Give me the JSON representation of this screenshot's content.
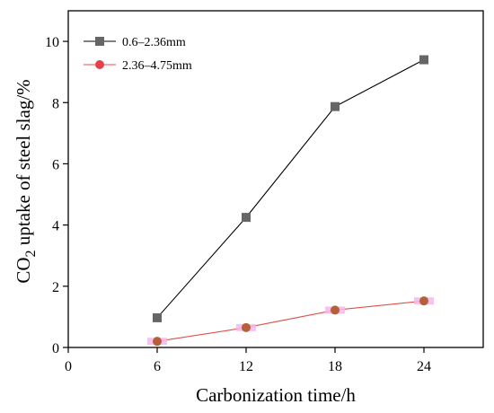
{
  "chart_data": {
    "type": "line",
    "xlabel": "Carbonization time/h",
    "ylabel_main": "CO",
    "ylabel_sub": "2",
    "ylabel_rest": " uptake of steel slag/%",
    "xlim": [
      0,
      28
    ],
    "ylim": [
      0,
      11
    ],
    "xticks": [
      0,
      6,
      12,
      18,
      24
    ],
    "yticks": [
      0,
      2,
      4,
      6,
      8,
      10
    ],
    "grid": false,
    "legend_position": "top-left",
    "series": [
      {
        "name": "0.6–2.36mm",
        "marker": "square",
        "line_color": "#000000",
        "marker_color": "#666666",
        "x": [
          6,
          12,
          18,
          24
        ],
        "y": [
          0.97,
          4.25,
          7.87,
          9.4
        ]
      },
      {
        "name": "2.36–4.75mm",
        "marker": "circle",
        "line_color": "#e0504a",
        "marker_color": "#b5603a",
        "error_color": "#f3b8ec",
        "x": [
          6,
          12,
          18,
          24
        ],
        "y": [
          0.2,
          0.65,
          1.22,
          1.52
        ]
      }
    ]
  }
}
